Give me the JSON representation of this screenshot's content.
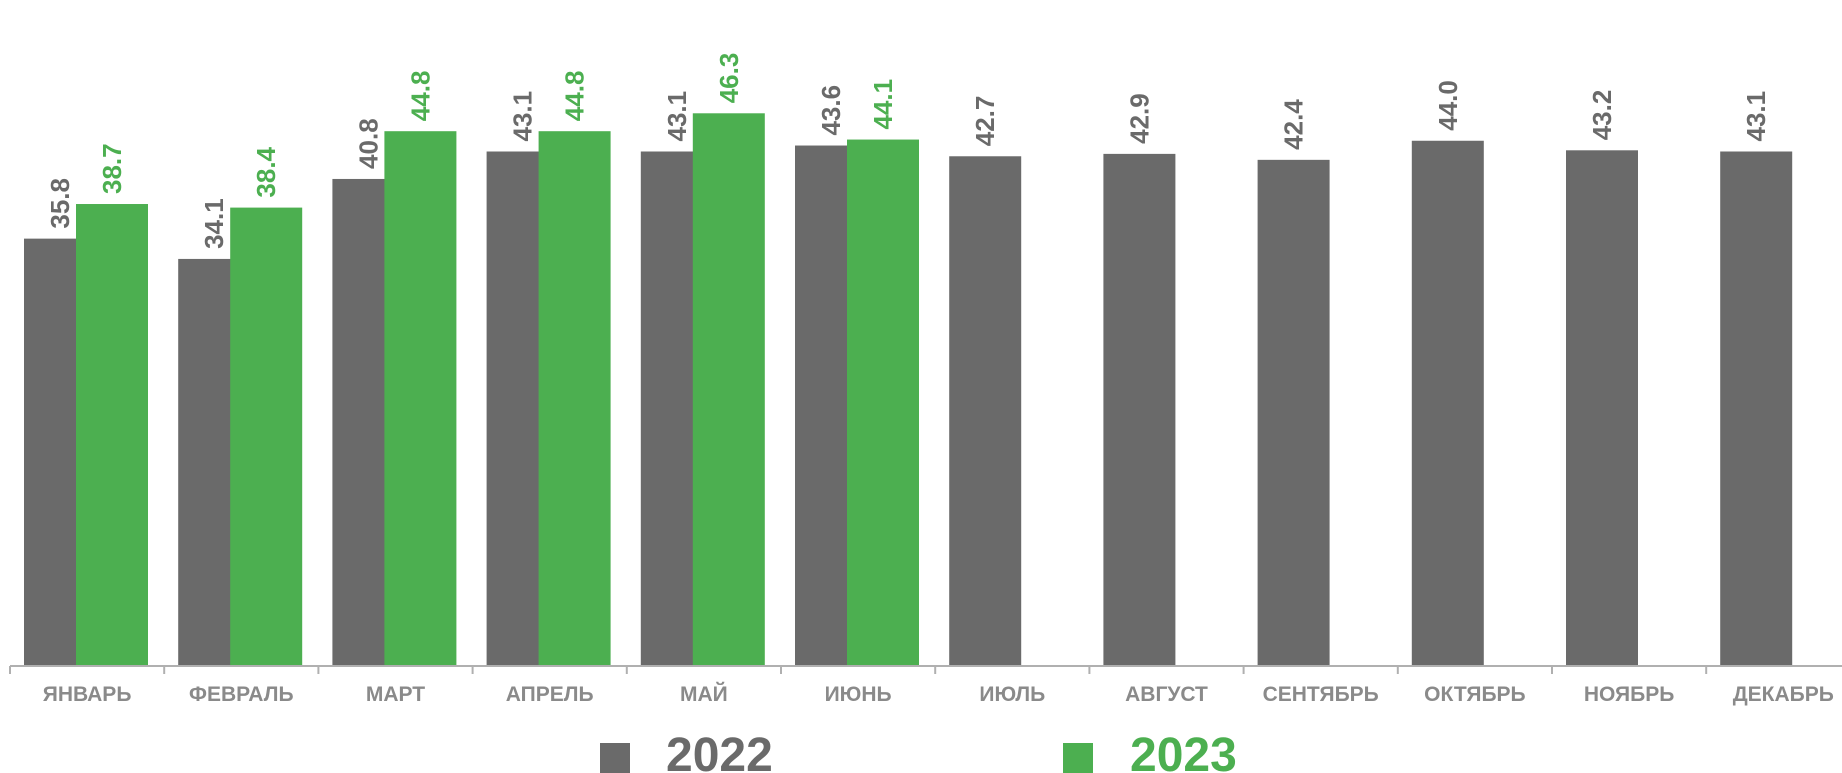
{
  "chart_data": {
    "type": "bar",
    "categories": [
      "ЯНВАРЬ",
      "ФЕВРАЛЬ",
      "МАРТ",
      "АПРЕЛЬ",
      "МАЙ",
      "ИЮНЬ",
      "ИЮЛЬ",
      "АВГУСТ",
      "СЕНТЯБРЬ",
      "ОКТЯБРЬ",
      "НОЯБРЬ",
      "ДЕКАБРЬ"
    ],
    "series": [
      {
        "name": "2022",
        "color": "#6a6a6a",
        "values": [
          35.8,
          34.1,
          40.8,
          43.1,
          43.1,
          43.6,
          42.7,
          42.9,
          42.4,
          44.0,
          43.2,
          43.1
        ],
        "labels": [
          "35.8",
          "34.1",
          "40.8",
          "43.1",
          "43.1",
          "43.6",
          "42.7",
          "42.9",
          "42.4",
          "44.0",
          "43.2",
          "43.1"
        ]
      },
      {
        "name": "2023",
        "color": "#4caf50",
        "values": [
          38.7,
          38.4,
          44.8,
          44.8,
          46.3,
          44.1,
          null,
          null,
          null,
          null,
          null,
          null
        ],
        "labels": [
          "38.7",
          "38.4",
          "44.8",
          "44.8",
          "46.3",
          "44.1",
          "",
          "",
          "",
          "",
          "",
          ""
        ]
      }
    ],
    "ylim": [
      0,
      48
    ],
    "grid": false,
    "legend_position": "bottom",
    "title": "",
    "xlabel": "",
    "ylabel": ""
  }
}
